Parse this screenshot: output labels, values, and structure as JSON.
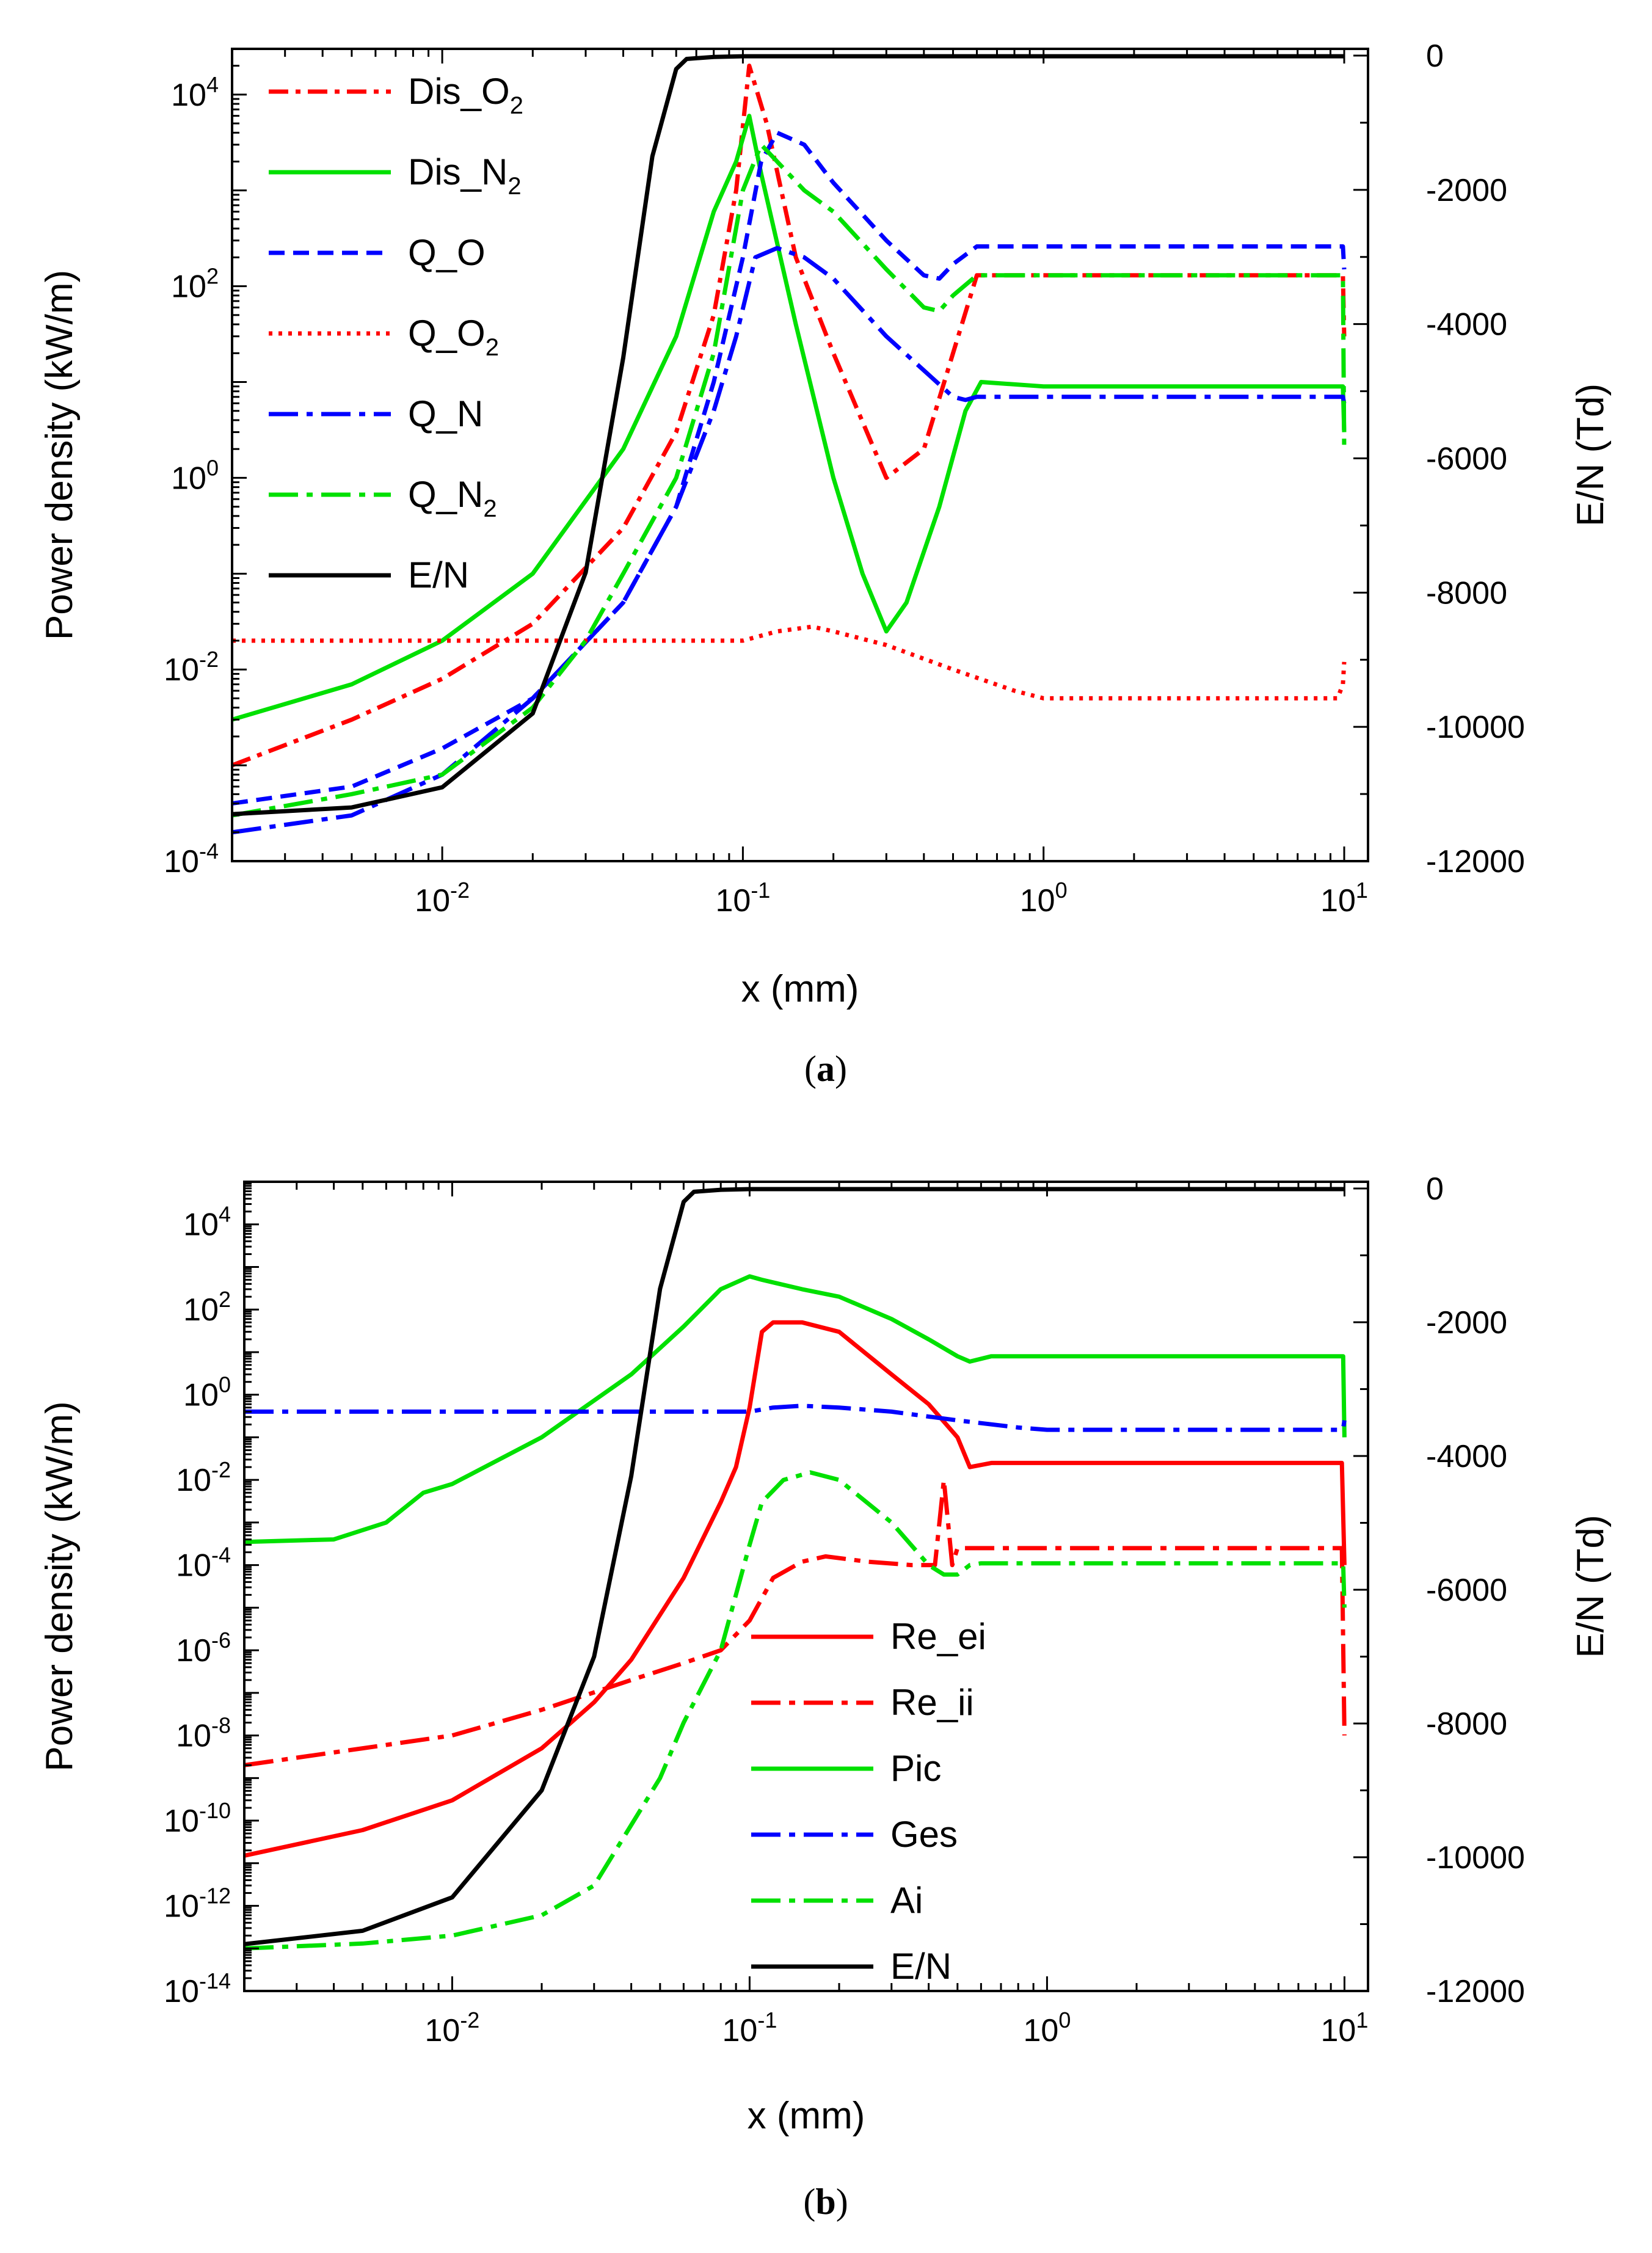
{
  "chart_data": [
    {
      "panel_label": "a",
      "caption_open": "(",
      "caption_close": ")",
      "type": "line",
      "xlabel": "x (mm)",
      "ylabel": "Power density (kW/m)",
      "y2label": "E/N (Td)",
      "xscale": "log",
      "yscale": "log",
      "xlim": [
        0.002,
        12
      ],
      "ylim": [
        0.0001,
        30000
      ],
      "y2lim": [
        -12000,
        100
      ],
      "x_ticks": [
        {
          "base": "10",
          "exp": "-2",
          "value": 0.01
        },
        {
          "base": "10",
          "exp": "-1",
          "value": 0.1
        },
        {
          "base": "10",
          "exp": "0",
          "value": 1
        },
        {
          "base": "10",
          "exp": "1",
          "value": 10
        }
      ],
      "y_ticks": [
        {
          "base": "10",
          "exp": "-4",
          "value": 0.0001
        },
        {
          "base": "10",
          "exp": "-2",
          "value": 0.01
        },
        {
          "base": "10",
          "exp": "0",
          "value": 1
        },
        {
          "base": "10",
          "exp": "2",
          "value": 100
        },
        {
          "base": "10",
          "exp": "4",
          "value": 10000
        }
      ],
      "y2_ticks": [
        {
          "label": "0",
          "value": 0
        },
        {
          "label": "-2000",
          "value": -2000
        },
        {
          "label": "-4000",
          "value": -4000
        },
        {
          "label": "-6000",
          "value": -6000
        },
        {
          "label": "-8000",
          "value": -8000
        },
        {
          "label": "-10000",
          "value": -10000
        },
        {
          "label": "-12000",
          "value": -12000
        }
      ],
      "legend_position": "top-left",
      "series": [
        {
          "name": "Dis_O",
          "sub": "2",
          "color": "#ff0000",
          "dash": "dashdot",
          "axis": "left",
          "x": [
            0.002,
            0.005,
            0.01,
            0.02,
            0.04,
            0.06,
            0.08,
            0.095,
            0.105,
            0.12,
            0.15,
            0.2,
            0.3,
            0.4,
            0.5,
            0.6,
            1,
            3,
            9.5,
            9.9,
            10
          ],
          "y": [
            0.001,
            0.003,
            0.008,
            0.03,
            0.3,
            3,
            50,
            1000,
            20000,
            5000,
            200,
            20,
            1,
            2,
            20,
            130,
            130,
            130,
            130,
            130,
            30
          ]
        },
        {
          "name": "Dis_N",
          "sub": "2",
          "color": "#00e000",
          "dash": "solid",
          "axis": "left",
          "x": [
            0.002,
            0.005,
            0.01,
            0.02,
            0.04,
            0.06,
            0.08,
            0.095,
            0.105,
            0.115,
            0.15,
            0.2,
            0.25,
            0.3,
            0.35,
            0.45,
            0.55,
            0.62,
            1,
            3,
            9.5,
            9.9,
            10
          ],
          "y": [
            0.003,
            0.007,
            0.02,
            0.1,
            2,
            30,
            600,
            2000,
            6000,
            1500,
            40,
            1,
            0.1,
            0.025,
            0.05,
            0.5,
            5,
            10,
            9,
            9,
            9,
            9,
            3
          ]
        },
        {
          "name": "Q_O",
          "sub": "",
          "color": "#0000ff",
          "dash": "dash",
          "axis": "left",
          "x": [
            0.002,
            0.005,
            0.01,
            0.02,
            0.04,
            0.06,
            0.08,
            0.1,
            0.115,
            0.13,
            0.16,
            0.2,
            0.3,
            0.4,
            0.45,
            0.5,
            0.6,
            1,
            3,
            9.5,
            9.9,
            10
          ],
          "y": [
            0.0004,
            0.0006,
            0.0015,
            0.005,
            0.05,
            0.5,
            10,
            200,
            2000,
            4000,
            3000,
            1200,
            300,
            130,
            120,
            170,
            260,
            260,
            260,
            260,
            260,
            150
          ]
        },
        {
          "name": "Q_O",
          "sub": "2",
          "color": "#ff0000",
          "dash": "dot",
          "axis": "left",
          "x": [
            0.002,
            0.01,
            0.05,
            0.1,
            0.13,
            0.17,
            0.2,
            0.3,
            0.5,
            0.8,
            1,
            3,
            9.5,
            9.9,
            10
          ],
          "y": [
            0.02,
            0.02,
            0.02,
            0.02,
            0.025,
            0.028,
            0.025,
            0.018,
            0.01,
            0.006,
            0.005,
            0.005,
            0.005,
            0.007,
            0.012
          ]
        },
        {
          "name": "Q_N",
          "sub": "",
          "color": "#0000ff",
          "dash": "longdashdot",
          "axis": "left",
          "x": [
            0.002,
            0.005,
            0.01,
            0.02,
            0.04,
            0.06,
            0.08,
            0.095,
            0.11,
            0.13,
            0.16,
            0.2,
            0.3,
            0.5,
            0.55,
            0.6,
            1,
            3,
            9.5,
            9.9,
            10
          ],
          "y": [
            0.0002,
            0.0003,
            0.0008,
            0.005,
            0.05,
            0.5,
            5,
            30,
            200,
            250,
            200,
            120,
            30,
            7,
            6.5,
            7,
            7,
            7,
            7,
            7,
            6
          ]
        },
        {
          "name": "Q_N",
          "sub": "2",
          "color": "#00e000",
          "dash": "longdashdot",
          "axis": "left",
          "x": [
            0.002,
            0.005,
            0.01,
            0.02,
            0.03,
            0.04,
            0.06,
            0.08,
            0.1,
            0.115,
            0.13,
            0.16,
            0.2,
            0.3,
            0.4,
            0.45,
            0.5,
            0.6,
            1,
            3,
            9.5,
            9.9,
            10
          ],
          "y": [
            0.0003,
            0.0005,
            0.0008,
            0.004,
            0.02,
            0.1,
            1,
            20,
            1000,
            3000,
            2000,
            1000,
            600,
            150,
            60,
            55,
            80,
            130,
            130,
            130,
            130,
            130,
            2
          ]
        },
        {
          "name": "E/N",
          "sub": "",
          "color": "#000000",
          "dash": "solid",
          "axis": "right",
          "x": [
            0.002,
            0.005,
            0.01,
            0.02,
            0.03,
            0.04,
            0.05,
            0.06,
            0.065,
            0.08,
            0.1,
            1,
            9.9,
            10
          ],
          "y": [
            -11300,
            -11200,
            -10900,
            -9800,
            -7700,
            -4500,
            -1500,
            -200,
            -50,
            -20,
            -10,
            -10,
            -10,
            -10
          ]
        }
      ]
    },
    {
      "panel_label": "b",
      "caption_open": "(",
      "caption_close": ")",
      "type": "line",
      "xlabel": "x (mm)",
      "ylabel": "Power density (kW/m)",
      "y2label": "E/N (Td)",
      "xscale": "log",
      "yscale": "log",
      "xlim": [
        0.002,
        12
      ],
      "ylim": [
        1e-14,
        100000
      ],
      "y2lim": [
        -12000,
        100
      ],
      "x_ticks": [
        {
          "base": "10",
          "exp": "-2",
          "value": 0.01
        },
        {
          "base": "10",
          "exp": "-1",
          "value": 0.1
        },
        {
          "base": "10",
          "exp": "0",
          "value": 1
        },
        {
          "base": "10",
          "exp": "1",
          "value": 10
        }
      ],
      "y_ticks": [
        {
          "base": "10",
          "exp": "-14",
          "value": 1e-14
        },
        {
          "base": "10",
          "exp": "-12",
          "value": 1e-12
        },
        {
          "base": "10",
          "exp": "-10",
          "value": 1e-10
        },
        {
          "base": "10",
          "exp": "-8",
          "value": 1e-08
        },
        {
          "base": "10",
          "exp": "-6",
          "value": 1e-06
        },
        {
          "base": "10",
          "exp": "-4",
          "value": 0.0001
        },
        {
          "base": "10",
          "exp": "-2",
          "value": 0.01
        },
        {
          "base": "10",
          "exp": "0",
          "value": 1
        },
        {
          "base": "10",
          "exp": "2",
          "value": 100
        },
        {
          "base": "10",
          "exp": "4",
          "value": 10000
        }
      ],
      "y2_ticks": [
        {
          "label": "0",
          "value": 0
        },
        {
          "label": "-2000",
          "value": -2000
        },
        {
          "label": "-4000",
          "value": -4000
        },
        {
          "label": "-6000",
          "value": -6000
        },
        {
          "label": "-8000",
          "value": -8000
        },
        {
          "label": "-10000",
          "value": -10000
        },
        {
          "label": "-12000",
          "value": -12000
        }
      ],
      "legend_position": "bottom-center",
      "series": [
        {
          "name": "Re_ei",
          "sub": "",
          "color": "#ff0000",
          "dash": "solid",
          "axis": "left",
          "x": [
            0.002,
            0.005,
            0.01,
            0.02,
            0.03,
            0.04,
            0.06,
            0.08,
            0.09,
            0.1,
            0.11,
            0.12,
            0.15,
            0.2,
            0.3,
            0.4,
            0.5,
            0.55,
            0.65,
            1,
            3,
            9.5,
            9.8,
            10
          ],
          "y": [
            1.5e-11,
            6e-11,
            3e-10,
            5e-09,
            6e-08,
            6e-07,
            5e-05,
            0.003,
            0.02,
            0.5,
            30,
            50,
            50,
            30,
            3,
            0.6,
            0.1,
            0.02,
            0.025,
            0.025,
            0.025,
            0.025,
            0.025,
            0.0001
          ]
        },
        {
          "name": "Re_ii",
          "sub": "",
          "color": "#ff0000",
          "dash": "longdashdot",
          "axis": "left",
          "x": [
            0.002,
            0.005,
            0.01,
            0.02,
            0.04,
            0.06,
            0.08,
            0.1,
            0.12,
            0.15,
            0.18,
            0.25,
            0.35,
            0.42,
            0.45,
            0.48,
            0.5,
            0.6,
            1,
            3,
            9.5,
            9.8,
            10
          ],
          "y": [
            2e-09,
            5e-09,
            1e-08,
            4e-08,
            2e-07,
            5e-07,
            1e-06,
            5e-06,
            5e-05,
            0.00012,
            0.00016,
            0.00012,
            0.0001,
            0.0001,
            0.01,
            0.0001,
            0.00025,
            0.00025,
            0.00025,
            0.00025,
            0.00025,
            0.00025,
            1e-08
          ]
        },
        {
          "name": "Pic",
          "sub": "",
          "color": "#00e000",
          "dash": "solid",
          "axis": "left",
          "x": [
            0.002,
            0.004,
            0.006,
            0.008,
            0.01,
            0.02,
            0.04,
            0.06,
            0.08,
            0.1,
            0.11,
            0.15,
            0.2,
            0.3,
            0.4,
            0.5,
            0.55,
            0.65,
            1,
            3,
            9.5,
            9.9,
            10
          ],
          "y": [
            0.00035,
            0.0004,
            0.001,
            0.005,
            0.008,
            0.1,
            3,
            40,
            300,
            600,
            500,
            300,
            200,
            60,
            20,
            8,
            6,
            8,
            8,
            8,
            8,
            8,
            0.1
          ]
        },
        {
          "name": "Ges",
          "sub": "",
          "color": "#0000ff",
          "dash": "longdashdot",
          "axis": "left",
          "x": [
            0.002,
            0.01,
            0.05,
            0.1,
            0.12,
            0.15,
            0.2,
            0.3,
            0.5,
            0.8,
            1,
            3,
            9.5,
            9.9,
            10
          ],
          "y": [
            0.4,
            0.4,
            0.4,
            0.4,
            0.5,
            0.55,
            0.5,
            0.4,
            0.25,
            0.17,
            0.15,
            0.15,
            0.15,
            0.16,
            0.25
          ]
        },
        {
          "name": "Ai",
          "sub": "",
          "color": "#00e000",
          "dash": "longdashdot",
          "axis": "left",
          "x": [
            0.002,
            0.005,
            0.01,
            0.02,
            0.03,
            0.05,
            0.06,
            0.08,
            0.1,
            0.11,
            0.13,
            0.16,
            0.2,
            0.3,
            0.4,
            0.45,
            0.5,
            0.55,
            0.6,
            1,
            3,
            9.5,
            9.9,
            10
          ],
          "y": [
            1e-13,
            1.3e-13,
            2e-13,
            6e-13,
            3e-12,
            1e-09,
            2e-08,
            1e-06,
            0.0003,
            0.003,
            0.01,
            0.015,
            0.01,
            0.001,
            0.0001,
            6e-05,
            6e-05,
            0.0001,
            0.00011,
            0.00011,
            0.00011,
            0.00011,
            0.00011,
            1e-05
          ]
        },
        {
          "name": "E/N",
          "sub": "",
          "color": "#000000",
          "dash": "solid",
          "axis": "right",
          "x": [
            0.002,
            0.005,
            0.01,
            0.02,
            0.03,
            0.04,
            0.05,
            0.06,
            0.065,
            0.08,
            0.1,
            1,
            9.9,
            10
          ],
          "y": [
            -11300,
            -11100,
            -10600,
            -9000,
            -7000,
            -4300,
            -1500,
            -200,
            -50,
            -20,
            -10,
            -10,
            -10,
            -10
          ]
        }
      ]
    }
  ]
}
